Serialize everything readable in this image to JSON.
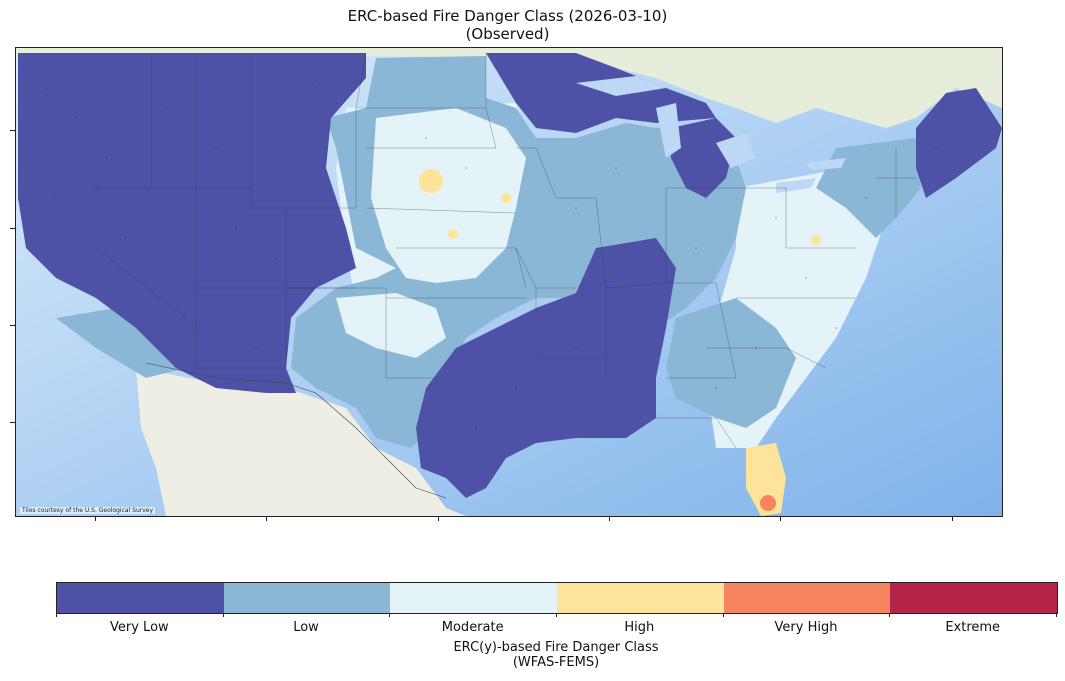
{
  "title": {
    "line1": "ERC-based Fire Danger Class (2026-03-10)",
    "line2": "(Observed)"
  },
  "map": {
    "attribution": "Tiles courtesy of the U.S. Geological Survey",
    "colors": {
      "ocean": "#cfe4fa",
      "land_base": "#eef2e6",
      "canada": "#e4ecd8",
      "mexico": "#f0f0e8"
    }
  },
  "colorbar": {
    "classes": [
      {
        "label": "Very Low",
        "color": "#4d52a6"
      },
      {
        "label": "Low",
        "color": "#8ab7d6"
      },
      {
        "label": "Moderate",
        "color": "#e3f3f8"
      },
      {
        "label": "High",
        "color": "#fee39a"
      },
      {
        "label": "Very High",
        "color": "#f5845f"
      },
      {
        "label": "Extreme",
        "color": "#b42446"
      }
    ],
    "title_line1": "ERC(y)-based Fire Danger Class",
    "title_line2": "(WFAS-FEMS)"
  }
}
